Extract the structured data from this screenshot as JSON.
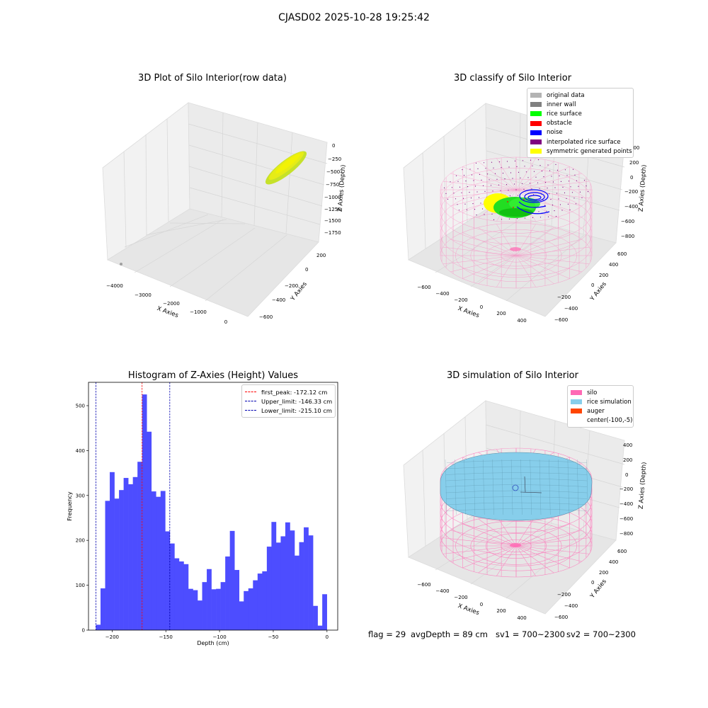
{
  "figure": {
    "suptitle": "CJASD02 2025-10-28 19:25:42"
  },
  "colors": {
    "silo": "#ff69b4",
    "rice": "#87ceeb",
    "auger": "#ff4500",
    "original": "#b3b3b3",
    "inner_wall": "#808080",
    "rice_surface": "#00ff00",
    "obstacle": "#ff0000",
    "noise": "#0000ff",
    "interpolated": "#800080",
    "symmetric": "#ffff00",
    "hist_bar": "#4d4dff"
  },
  "plot_raw": {
    "title": "3D Plot of Silo Interior(row data)",
    "xlabel": "X Axies",
    "ylabel": "Y Axies",
    "zlabel": "Z Axies (Depth)",
    "x_ticks": [
      "−4000",
      "−3000",
      "−2000",
      "−1000",
      "0"
    ],
    "y_ticks": [
      "200",
      "0",
      "−200",
      "−400",
      "−600"
    ],
    "z_ticks": [
      "0",
      "−250",
      "−500",
      "−750",
      "−1000",
      "−1250",
      "−1500",
      "−1750"
    ]
  },
  "plot_classify": {
    "title": "3D classify of Silo Interior",
    "xlabel": "X Axies",
    "ylabel": "Y Axies",
    "zlabel": "Z Axies (Depth)",
    "x_ticks": [
      "−600",
      "−400",
      "−200",
      "0",
      "200",
      "400"
    ],
    "y_ticks": [
      "600",
      "400",
      "200",
      "0",
      "−200",
      "−400",
      "−600"
    ],
    "z_ticks": [
      "400",
      "200",
      "0",
      "−200",
      "−400",
      "−600",
      "−800"
    ],
    "legend": [
      "original data",
      "inner wall",
      "rice surface",
      "obstacle",
      "noise",
      "interpolated rice surface",
      "symmetric generated points"
    ]
  },
  "plot_sim": {
    "title": "3D simulation of Silo Interior",
    "xlabel": "X Axies",
    "ylabel": "Y Axies",
    "zlabel": "Z Axies (Depth)",
    "x_ticks": [
      "−600",
      "−400",
      "−200",
      "0",
      "200",
      "400"
    ],
    "y_ticks": [
      "600",
      "400",
      "200",
      "0",
      "−200",
      "−400",
      "−600"
    ],
    "z_ticks": [
      "400",
      "200",
      "0",
      "−200",
      "−400",
      "−600",
      "−800"
    ],
    "legend": [
      "silo",
      "rice simulation",
      "auger",
      "center(-100,-5)"
    ]
  },
  "status": {
    "flag": "flag = 29",
    "avg_depth": "avgDepth = 89 cm",
    "sv1": "sv1 = 700~2300",
    "sv2": "sv2 = 700~2300"
  },
  "chart_data": {
    "type": "bar",
    "title": "Histogram of Z-Axies (Height) Values",
    "xlabel": "Depth (cm)",
    "ylabel": "Frequency",
    "xlim": [
      -222,
      10
    ],
    "ylim": [
      0,
      552
    ],
    "x_ticks": [
      -200,
      -150,
      -100,
      -50,
      0
    ],
    "x_tick_labels": [
      "−200",
      "−150",
      "−100",
      "−50",
      "0"
    ],
    "y_ticks": [
      0,
      100,
      200,
      300,
      400,
      500
    ],
    "bin_width": 4.3,
    "bin_start": -215.1,
    "values": [
      12,
      93,
      288,
      352,
      293,
      312,
      339,
      325,
      341,
      375,
      525,
      442,
      309,
      297,
      310,
      220,
      193,
      160,
      153,
      147,
      92,
      89,
      66,
      107,
      136,
      91,
      92,
      107,
      164,
      221,
      134,
      64,
      87,
      93,
      111,
      126,
      131,
      186,
      241,
      195,
      209,
      240,
      222,
      166,
      196,
      229,
      211,
      54,
      10,
      80
    ],
    "lines": [
      {
        "label": "first_peak: -172.12 cm",
        "x": -172.12,
        "color": "#ff0000"
      },
      {
        "label": "Upper_limit: -146.33 cm",
        "x": -146.33,
        "color": "#0000b0"
      },
      {
        "label": "Lower_limit: -215.10 cm",
        "x": -215.1,
        "color": "#0000b0"
      }
    ],
    "legend_position": "upper right"
  }
}
